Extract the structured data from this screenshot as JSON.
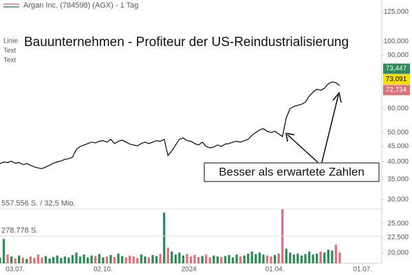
{
  "chart_data": {
    "type": "line",
    "header": "Argan Inc. (784598) (AGX) - 1 Tag",
    "legend_labels": [
      "Linie",
      "Text",
      "Text"
    ],
    "title": "Bauunternehmen - Profiteur der US-Reindustrialisierung",
    "annotation": "Besser als erwartete Zahlen",
    "log_scale": true,
    "xlim": [
      0,
      100
    ],
    "xticks": [
      {
        "value": 4,
        "label": "03.07."
      },
      {
        "value": 27,
        "label": "02.10."
      },
      {
        "value": 49.5,
        "label": "2024"
      },
      {
        "value": 72,
        "label": "01.04."
      },
      {
        "value": 95,
        "label": "01.07."
      }
    ],
    "ylim": [
      18500,
      137000
    ],
    "yticks": [
      {
        "value": 125000,
        "label": "125,000"
      },
      {
        "value": 100000,
        "label": "100,000"
      },
      {
        "value": 90000,
        "label": "90,000"
      },
      {
        "value": 60000,
        "label": "60,000"
      },
      {
        "value": 50000,
        "label": "50,000"
      },
      {
        "value": 45000,
        "label": "45,000"
      },
      {
        "value": 40000,
        "label": "40,000"
      },
      {
        "value": 35000,
        "label": "35,000"
      },
      {
        "value": 30000,
        "label": "30,000"
      },
      {
        "value": 25000,
        "label": "25,000"
      },
      {
        "value": 22500,
        "label": "22,500"
      },
      {
        "value": 20000,
        "label": "20,000"
      }
    ],
    "price_labels": [
      {
        "value": 73447,
        "label": "73,447",
        "color": "#2e8b57"
      },
      {
        "value": 73091,
        "label": "73,091",
        "color": "#f5e000"
      },
      {
        "value": 72734,
        "label": "72,734",
        "color": "#d9727b"
      }
    ],
    "series": [
      {
        "name": "Argan Inc.",
        "color": "#000000",
        "values": [
          39500,
          40000,
          39800,
          40200,
          39600,
          39800,
          39200,
          39500,
          39000,
          38500,
          38200,
          38000,
          38500,
          39000,
          39600,
          40000,
          40300,
          40800,
          41000,
          41500,
          44000,
          45000,
          45500,
          46000,
          46500,
          46200,
          46800,
          47000,
          46500,
          47500,
          46000,
          46800,
          47200,
          46500,
          45800,
          45500,
          45200,
          46000,
          46500,
          46000,
          46500,
          47000,
          46800,
          47500,
          42000,
          43500,
          45500,
          47500,
          48000,
          47000,
          46800,
          46000,
          45500,
          46500,
          45000,
          44500,
          44800,
          45500,
          45000,
          45800,
          46000,
          46500,
          46800,
          46500,
          47000,
          47500,
          49000,
          50000,
          51000,
          51500,
          50500,
          50000,
          50500,
          49500,
          48500,
          56000,
          60000,
          61000,
          61500,
          62000,
          63000,
          66000,
          68000,
          69500,
          69000,
          70000,
          72500,
          73500,
          73000,
          71500
        ]
      }
    ],
    "volume": {
      "ylim": [
        0,
        557556
      ],
      "up_color": "#2e8b57",
      "down_color": "#d9727b",
      "ticks": [
        {
          "value": 557556,
          "label": "557.556 S. / 32,5 Mio."
        },
        {
          "value": 278778,
          "label": "278.778 S."
        }
      ],
      "values": [
        60000,
        250000,
        90000,
        70000,
        50000,
        80000,
        60000,
        45000,
        70000,
        55000,
        90000,
        60000,
        75000,
        50000,
        65000,
        80000,
        55000,
        70000,
        60000,
        85000,
        110000,
        70000,
        90000,
        60000,
        80000,
        75000,
        95000,
        60000,
        70000,
        85000,
        65000,
        100000,
        75000,
        60000,
        80000,
        70000,
        55000,
        90000,
        70000,
        60000,
        85000,
        75000,
        95000,
        520000,
        160000,
        120000,
        90000,
        110000,
        80000,
        95000,
        70000,
        85000,
        65000,
        75000,
        90000,
        60000,
        80000,
        70000,
        65000,
        75000,
        85000,
        60000,
        90000,
        70000,
        80000,
        100000,
        120000,
        95000,
        110000,
        90000,
        80000,
        70000,
        85000,
        100000,
        557556,
        150000,
        110000,
        90000,
        100000,
        80000,
        95000,
        120000,
        90000,
        100000,
        120000,
        110000,
        140000,
        130000,
        190000,
        110000
      ]
    }
  }
}
